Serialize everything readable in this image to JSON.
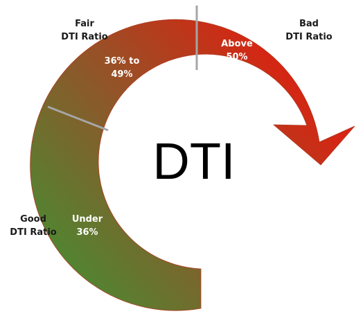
{
  "center_title": "DTI",
  "zones": [
    {
      "key": "good",
      "outer_line1": "Good",
      "outer_line2": "DTI Ratio",
      "inner_line1": "Under",
      "inner_line2": "36%"
    },
    {
      "key": "fair",
      "outer_line1": "Fair",
      "outer_line2": "DTI Ratio",
      "inner_line1": "36% to",
      "inner_line2": "49%"
    },
    {
      "key": "bad",
      "outer_line1": "Bad",
      "outer_line2": "DTI Ratio",
      "inner_line1": "Above",
      "inner_line2": "50%"
    }
  ],
  "colors": {
    "good": "#4a8a32",
    "fair": "#8a5a2a",
    "bad": "#e01e10",
    "divider": "#a6a6a6",
    "title": "#000000"
  }
}
